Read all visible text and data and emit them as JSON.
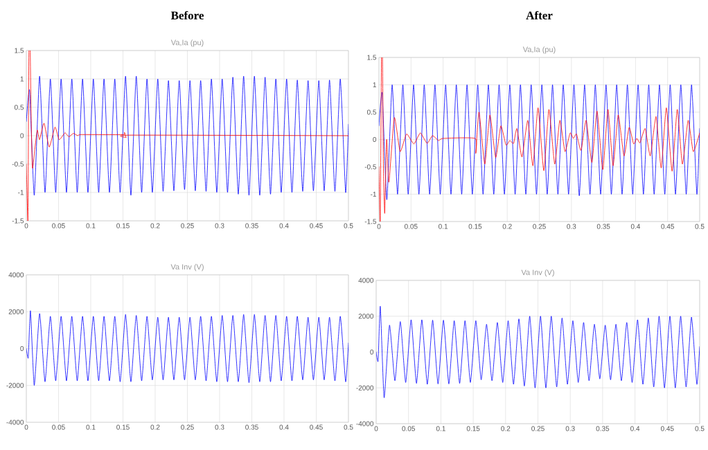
{
  "chart_data": [
    {
      "type": "line",
      "title": "Before",
      "subtitle": "Va,Ia (pu)",
      "xlim": [
        0,
        0.5
      ],
      "ylim": [
        -1.5,
        1.5
      ],
      "xticks": [
        0,
        0.05,
        0.1,
        0.15,
        0.2,
        0.25,
        0.3,
        0.35,
        0.4,
        0.45,
        0.5
      ],
      "yticks": [
        -1.5,
        -1,
        -0.5,
        0,
        0.5,
        1,
        1.5
      ],
      "grid": true,
      "x": [
        0,
        0.005,
        0.0123,
        0.0206,
        0.029,
        0.0373,
        0.0456,
        0.054,
        0.0623,
        0.0706,
        0.079,
        0.0873,
        0.0956,
        0.104,
        0.1123,
        0.1206,
        0.129,
        0.1373,
        0.1456,
        0.154,
        0.1623,
        0.1706,
        0.179,
        0.1873,
        0.1956,
        0.204,
        0.2123,
        0.2206,
        0.229,
        0.2373,
        0.2456,
        0.254,
        0.2623,
        0.2706,
        0.279,
        0.2873,
        0.2956,
        0.304,
        0.3123,
        0.3206,
        0.329,
        0.3373,
        0.3456,
        0.354,
        0.3623,
        0.3706,
        0.379,
        0.3873,
        0.3956,
        0.404,
        0.4123,
        0.4206,
        0.429,
        0.4373,
        0.4456,
        0.454,
        0.4623,
        0.4706,
        0.479,
        0.4873,
        0.4956,
        0.5
      ],
      "series": [
        {
          "color": "#0000ff",
          "values": [
            0.25,
            0.8,
            -1.05,
            1.05,
            -1,
            1,
            -1,
            1,
            -1,
            1,
            -1,
            1,
            -1,
            1,
            -1,
            1,
            -1,
            1,
            -1,
            1.05,
            -1.05,
            1.05,
            -1,
            1,
            -1,
            1,
            -0.98,
            0.97,
            -0.97,
            0.97,
            -0.95,
            0.97,
            -0.97,
            0.97,
            -0.98,
            1,
            -1,
            1,
            -1,
            1.03,
            -1.03,
            1.05,
            -1.05,
            1.05,
            -1.05,
            1.03,
            -1.03,
            1,
            -1,
            1,
            -1,
            0.98,
            -0.98,
            0.97,
            -0.97,
            0.97,
            -0.97,
            0.98,
            -0.98,
            1,
            -1,
            0.2
          ]
        },
        {
          "color": "#ff0000",
          "x": [
            0,
            0.0025,
            0.004,
            0.006,
            0.0075,
            0.0095,
            0.013,
            0.017,
            0.0205,
            0.0275,
            0.0355,
            0.0445,
            0.051,
            0.06,
            0.066,
            0.073,
            0.08,
            0.085,
            0.15,
            0.152,
            0.155,
            0.16,
            0.5
          ],
          "values": [
            -0.5,
            -1.5,
            1.5,
            1.5,
            0.3,
            -0.57,
            -0.25,
            0.1,
            -0.07,
            0.22,
            -0.2,
            0.15,
            -0.07,
            0.05,
            -0.02,
            0.04,
            0,
            0.02,
            0.02,
            0.06,
            -0.03,
            0.01,
            0
          ]
        }
      ]
    },
    {
      "type": "line",
      "title": "After",
      "subtitle": "Va,Ia (pu)",
      "xlim": [
        0,
        0.5
      ],
      "ylim": [
        -1.5,
        1.5
      ],
      "xticks": [
        0,
        0.05,
        0.1,
        0.15,
        0.2,
        0.25,
        0.3,
        0.35,
        0.4,
        0.45,
        0.5
      ],
      "yticks": [
        -1.5,
        -1,
        -0.5,
        0,
        0.5,
        1,
        1.5
      ],
      "grid": true,
      "x": [
        0,
        0.005,
        0.0123,
        0.0206,
        0.029,
        0.0373,
        0.0456,
        0.054,
        0.0623,
        0.0706,
        0.079,
        0.0873,
        0.0956,
        0.104,
        0.1123,
        0.1206,
        0.129,
        0.1373,
        0.1456,
        0.154,
        0.1623,
        0.1706,
        0.179,
        0.1873,
        0.1956,
        0.204,
        0.2123,
        0.2206,
        0.229,
        0.2373,
        0.2456,
        0.254,
        0.2623,
        0.2706,
        0.279,
        0.2873,
        0.2956,
        0.304,
        0.3123,
        0.3206,
        0.329,
        0.3373,
        0.3456,
        0.354,
        0.3623,
        0.3706,
        0.379,
        0.3873,
        0.3956,
        0.404,
        0.4123,
        0.4206,
        0.429,
        0.4373,
        0.4456,
        0.454,
        0.4623,
        0.4706,
        0.479,
        0.4873,
        0.4956,
        0.5
      ],
      "series": [
        {
          "color": "#0000ff",
          "values": [
            0.25,
            0.85,
            -1.1,
            1,
            -1,
            1,
            -1,
            1,
            -1,
            1,
            -1,
            1,
            -1,
            1,
            -1,
            1,
            -1,
            1,
            -1,
            1,
            -1,
            1,
            -1,
            1,
            -1,
            1,
            -1,
            1,
            -1,
            1,
            -1,
            1,
            -1,
            1,
            -1,
            1,
            -1,
            1,
            -1.03,
            1,
            -1,
            1,
            -1,
            1,
            -1,
            1,
            -1,
            1,
            -1,
            1,
            -1,
            1,
            -1,
            1,
            -1,
            1,
            -1,
            1,
            -1,
            1,
            -1,
            0.2
          ]
        },
        {
          "color": "#ff0000",
          "x": [
            0,
            0.002,
            0.004,
            0.0055,
            0.007,
            0.009,
            0.012,
            0.0155,
            0.024,
            0.033,
            0.043,
            0.0545,
            0.0645,
            0.075,
            0.0835,
            0.093,
            0.1,
            0.15,
            0.151,
            0.156,
            0.165,
            0.173,
            0.182,
            0.19,
            0.198,
            0.204,
            0.21,
            0.215,
            0.223,
            0.232,
            0.24,
            0.248,
            0.257,
            0.265,
            0.274,
            0.282,
            0.29,
            0.298,
            0.303,
            0.308,
            0.315,
            0.323,
            0.332,
            0.34,
            0.349,
            0.357,
            0.365,
            0.373,
            0.382,
            0.39,
            0.397,
            0.402,
            0.407,
            0.415,
            0.423,
            0.432,
            0.44,
            0.448,
            0.457,
            0.465,
            0.473,
            0.482,
            0.49,
            0.5
          ],
          "values": [
            -0.5,
            -1.5,
            1.5,
            1.5,
            -0.5,
            -1.35,
            0,
            -0.78,
            0.4,
            -0.22,
            0.1,
            -0.08,
            0.12,
            -0.07,
            0.07,
            -0.02,
            0.02,
            0.02,
            -0.25,
            0.5,
            -0.45,
            0.45,
            -0.33,
            0.25,
            -0.1,
            -0.02,
            -0.07,
            0.2,
            -0.32,
            0.35,
            -0.48,
            0.58,
            -0.57,
            0.55,
            -0.45,
            0.35,
            -0.22,
            0.12,
            0.02,
            0.1,
            -0.2,
            0.35,
            -0.42,
            0.52,
            -0.55,
            0.55,
            -0.48,
            0.45,
            -0.3,
            0.22,
            -0.08,
            0.02,
            -0.06,
            0.2,
            -0.3,
            0.42,
            -0.52,
            0.58,
            -0.58,
            0.55,
            -0.45,
            0.35,
            -0.22,
            0.12
          ]
        }
      ]
    },
    {
      "type": "line",
      "subtitle": "Va Inv (V)",
      "xlim": [
        0,
        0.5
      ],
      "ylim": [
        -4000,
        4000
      ],
      "xticks": [
        0,
        0.05,
        0.1,
        0.15,
        0.2,
        0.25,
        0.3,
        0.35,
        0.4,
        0.45,
        0.5
      ],
      "yticks": [
        -4000,
        -2000,
        0,
        2000,
        4000
      ],
      "grid": true,
      "x": [
        0,
        0.003,
        0.0064,
        0.0123,
        0.0206,
        0.029,
        0.0373,
        0.0456,
        0.054,
        0.0623,
        0.0706,
        0.079,
        0.0873,
        0.0956,
        0.104,
        0.1123,
        0.1206,
        0.129,
        0.1373,
        0.1456,
        0.154,
        0.1623,
        0.1706,
        0.179,
        0.1873,
        0.1956,
        0.204,
        0.2123,
        0.2206,
        0.229,
        0.2373,
        0.2456,
        0.254,
        0.2623,
        0.2706,
        0.279,
        0.2873,
        0.2956,
        0.304,
        0.3123,
        0.3206,
        0.329,
        0.3373,
        0.3456,
        0.354,
        0.3623,
        0.3706,
        0.379,
        0.3873,
        0.3956,
        0.404,
        0.4123,
        0.4206,
        0.429,
        0.4373,
        0.4456,
        0.454,
        0.4623,
        0.4706,
        0.479,
        0.4873,
        0.4956,
        0.5
      ],
      "series": [
        {
          "color": "#0000ff",
          "values": [
            0,
            -500,
            2050,
            -2000,
            1900,
            -1800,
            1750,
            -1750,
            1750,
            -1750,
            1750,
            -1750,
            1750,
            -1750,
            1750,
            -1750,
            1750,
            -1750,
            1750,
            -1800,
            1850,
            -1800,
            1800,
            -1750,
            1750,
            -1700,
            1700,
            -1700,
            1700,
            -1700,
            1700,
            -1700,
            1700,
            -1700,
            1750,
            -1750,
            1750,
            -1800,
            1800,
            -1800,
            1800,
            -1800,
            1850,
            -1850,
            1850,
            -1800,
            1800,
            -1800,
            1800,
            -1750,
            1750,
            -1750,
            1750,
            -1700,
            1700,
            -1700,
            1700,
            -1700,
            1700,
            -1750,
            1750,
            -1800,
            300
          ]
        }
      ]
    },
    {
      "type": "line",
      "subtitle": "Va Inv (V)",
      "xlim": [
        0,
        0.5
      ],
      "ylim": [
        -4000,
        4000
      ],
      "xticks": [
        0,
        0.05,
        0.1,
        0.15,
        0.2,
        0.25,
        0.3,
        0.35,
        0.4,
        0.45,
        0.5
      ],
      "yticks": [
        -4000,
        -2000,
        0,
        2000,
        4000
      ],
      "grid": true,
      "x": [
        0,
        0.003,
        0.0064,
        0.0123,
        0.0206,
        0.029,
        0.0373,
        0.0456,
        0.054,
        0.0623,
        0.0706,
        0.079,
        0.0873,
        0.0956,
        0.104,
        0.1123,
        0.1206,
        0.129,
        0.1373,
        0.1456,
        0.154,
        0.1623,
        0.1706,
        0.179,
        0.1873,
        0.1956,
        0.204,
        0.2123,
        0.2206,
        0.229,
        0.2373,
        0.2456,
        0.254,
        0.2623,
        0.2706,
        0.279,
        0.2873,
        0.2956,
        0.304,
        0.3123,
        0.3206,
        0.329,
        0.3373,
        0.3456,
        0.354,
        0.3623,
        0.3706,
        0.379,
        0.3873,
        0.3956,
        0.404,
        0.4123,
        0.4206,
        0.429,
        0.4373,
        0.4456,
        0.454,
        0.4623,
        0.4706,
        0.479,
        0.4873,
        0.4956,
        0.5
      ],
      "series": [
        {
          "color": "#0000ff",
          "values": [
            0,
            -500,
            2550,
            -2550,
            1500,
            -1600,
            1700,
            -1700,
            1800,
            -1750,
            1800,
            -1800,
            1780,
            -1780,
            1780,
            -1780,
            1750,
            -1750,
            1750,
            -1700,
            1750,
            -1550,
            1550,
            -1600,
            1650,
            -1700,
            1750,
            -1800,
            1850,
            -1900,
            2000,
            -2000,
            2000,
            -2000,
            2000,
            -1950,
            1900,
            -1800,
            1750,
            -1700,
            1650,
            -1600,
            1550,
            -1500,
            1500,
            -1550,
            1550,
            -1600,
            1650,
            -1700,
            1800,
            -1800,
            1900,
            -1950,
            2000,
            -2000,
            2000,
            -2000,
            2000,
            -1950,
            1950,
            -1800,
            300
          ]
        }
      ]
    }
  ]
}
